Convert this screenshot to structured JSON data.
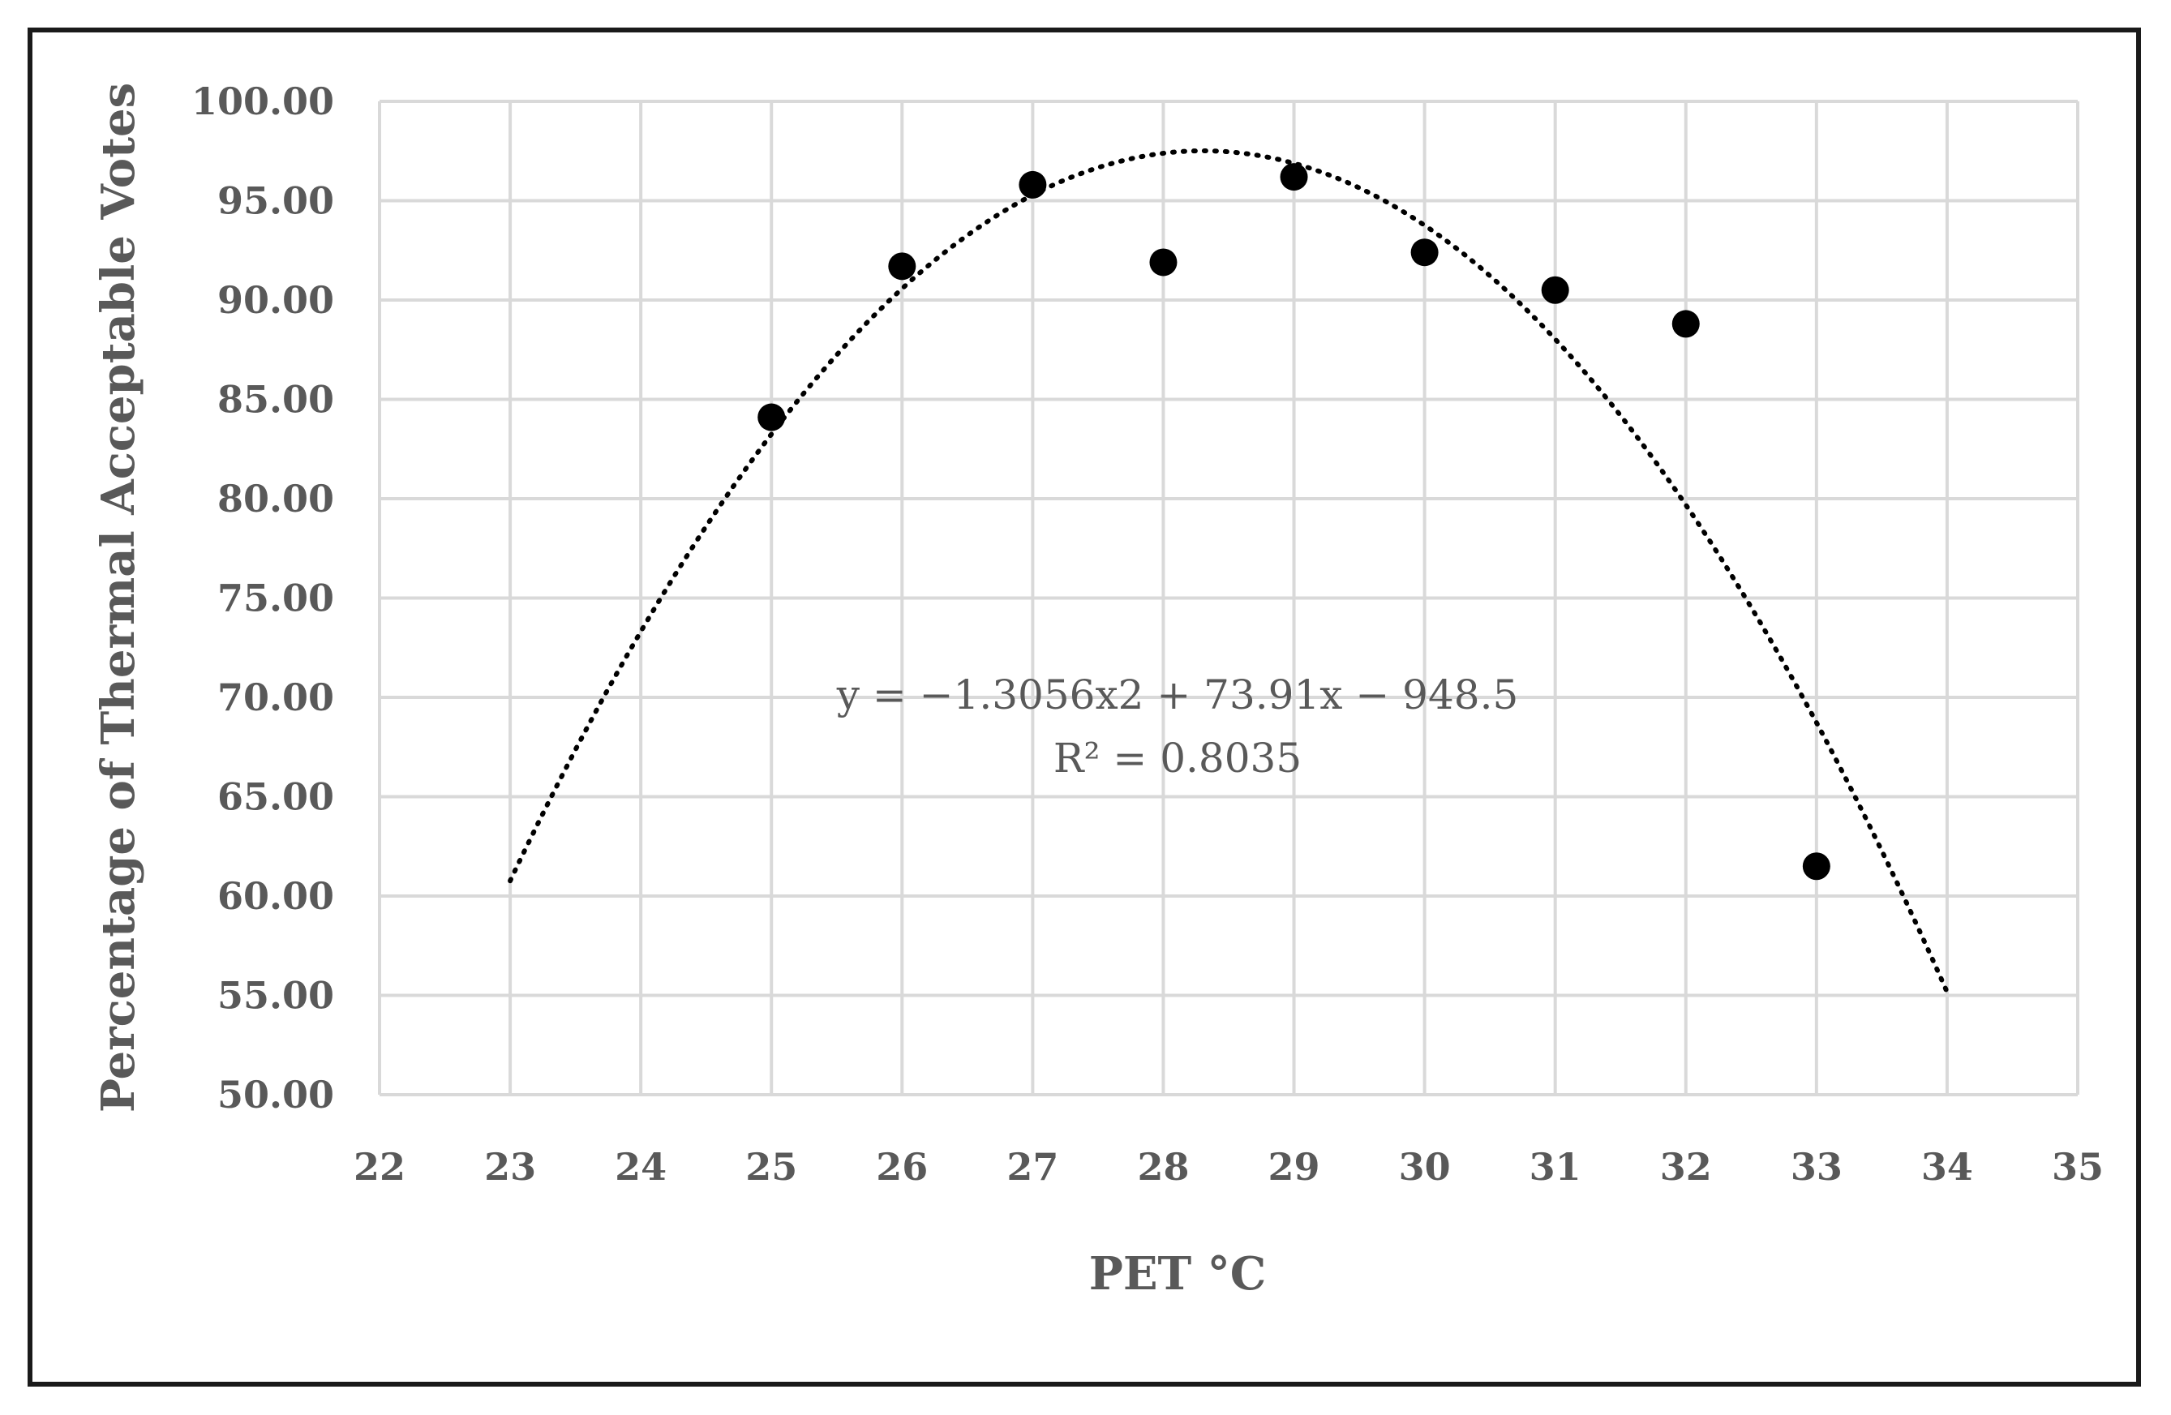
{
  "chart_data": {
    "type": "scatter",
    "title": "",
    "xlabel": "PET °C",
    "ylabel": "Percentage of Thermal Acceptable Votes",
    "xlim": [
      22,
      35
    ],
    "ylim": [
      50,
      100
    ],
    "x_ticks": [
      "22",
      "23",
      "24",
      "25",
      "26",
      "27",
      "28",
      "29",
      "30",
      "31",
      "32",
      "33",
      "34",
      "35"
    ],
    "y_ticks": [
      "50.00",
      "55.00",
      "60.00",
      "65.00",
      "70.00",
      "75.00",
      "80.00",
      "85.00",
      "90.00",
      "95.00",
      "100.00"
    ],
    "grid": true,
    "series": [
      {
        "points": [
          {
            "x": 25,
            "y": 84.1
          },
          {
            "x": 26,
            "y": 91.7
          },
          {
            "x": 27,
            "y": 95.8
          },
          {
            "x": 28,
            "y": 91.9
          },
          {
            "x": 29,
            "y": 96.2
          },
          {
            "x": 30,
            "y": 92.4
          },
          {
            "x": 31,
            "y": 90.5
          },
          {
            "x": 32,
            "y": 88.8
          },
          {
            "x": 33,
            "y": 61.5
          }
        ]
      }
    ],
    "trendline": {
      "type": "polynomial",
      "order": 2,
      "coefficients": {
        "a": -1.3056,
        "b": 73.91,
        "c": -948.5
      },
      "x_range": [
        23,
        34
      ],
      "equation": "y = −1.3056x2 + 73.91x − 948.5",
      "r2_label": "R² = 0.8035"
    },
    "colors": {
      "marker": "#000000",
      "grid": "#d9d9d9",
      "text": "#595959",
      "trend": "#000000"
    }
  }
}
